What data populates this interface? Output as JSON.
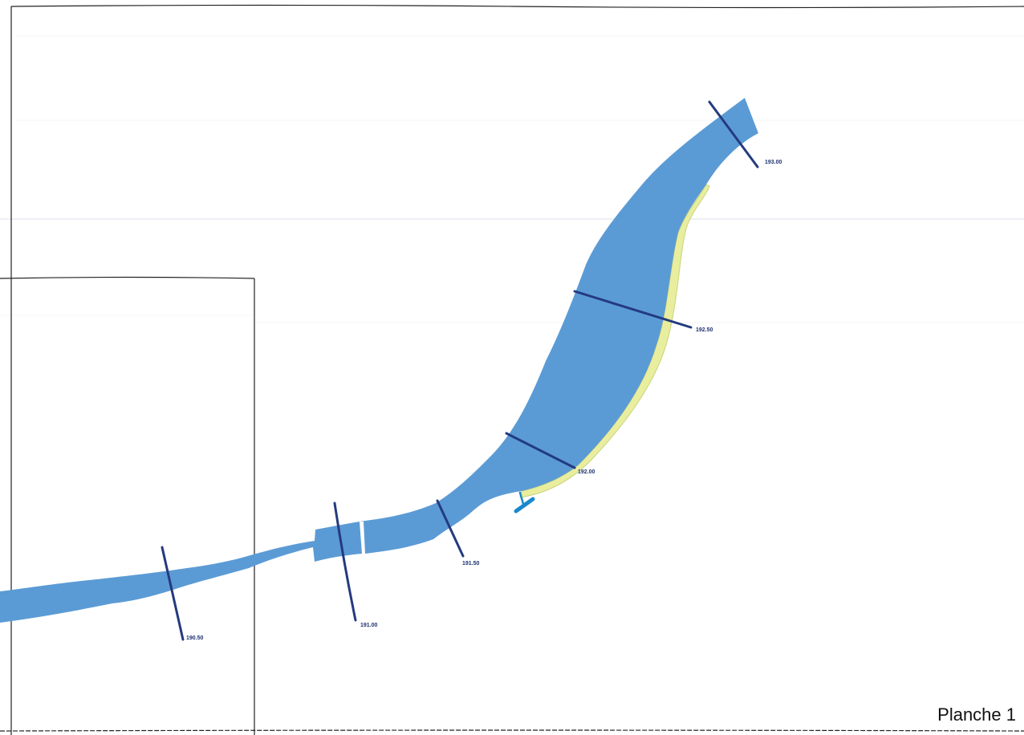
{
  "map": {
    "sheet_title": "Planche 1",
    "colors": {
      "river_fill": "#5b9bd5",
      "bank_deposit_fill": "#e9ed9e",
      "cross_section_line": "#243a80",
      "outfall_marker": "#1a88cc",
      "frame_line": "#222222",
      "faded_grid": "#cfd3ea"
    },
    "cross_sections": [
      {
        "id": "profile-190-50",
        "label": "190.50"
      },
      {
        "id": "profile-191-00",
        "label": "191.00"
      },
      {
        "id": "profile-191-50",
        "label": "191.50"
      },
      {
        "id": "profile-192-00",
        "label": "192.00"
      },
      {
        "id": "profile-192-50",
        "label": "192.50"
      },
      {
        "id": "profile-193-00",
        "label": "193.00"
      }
    ]
  }
}
